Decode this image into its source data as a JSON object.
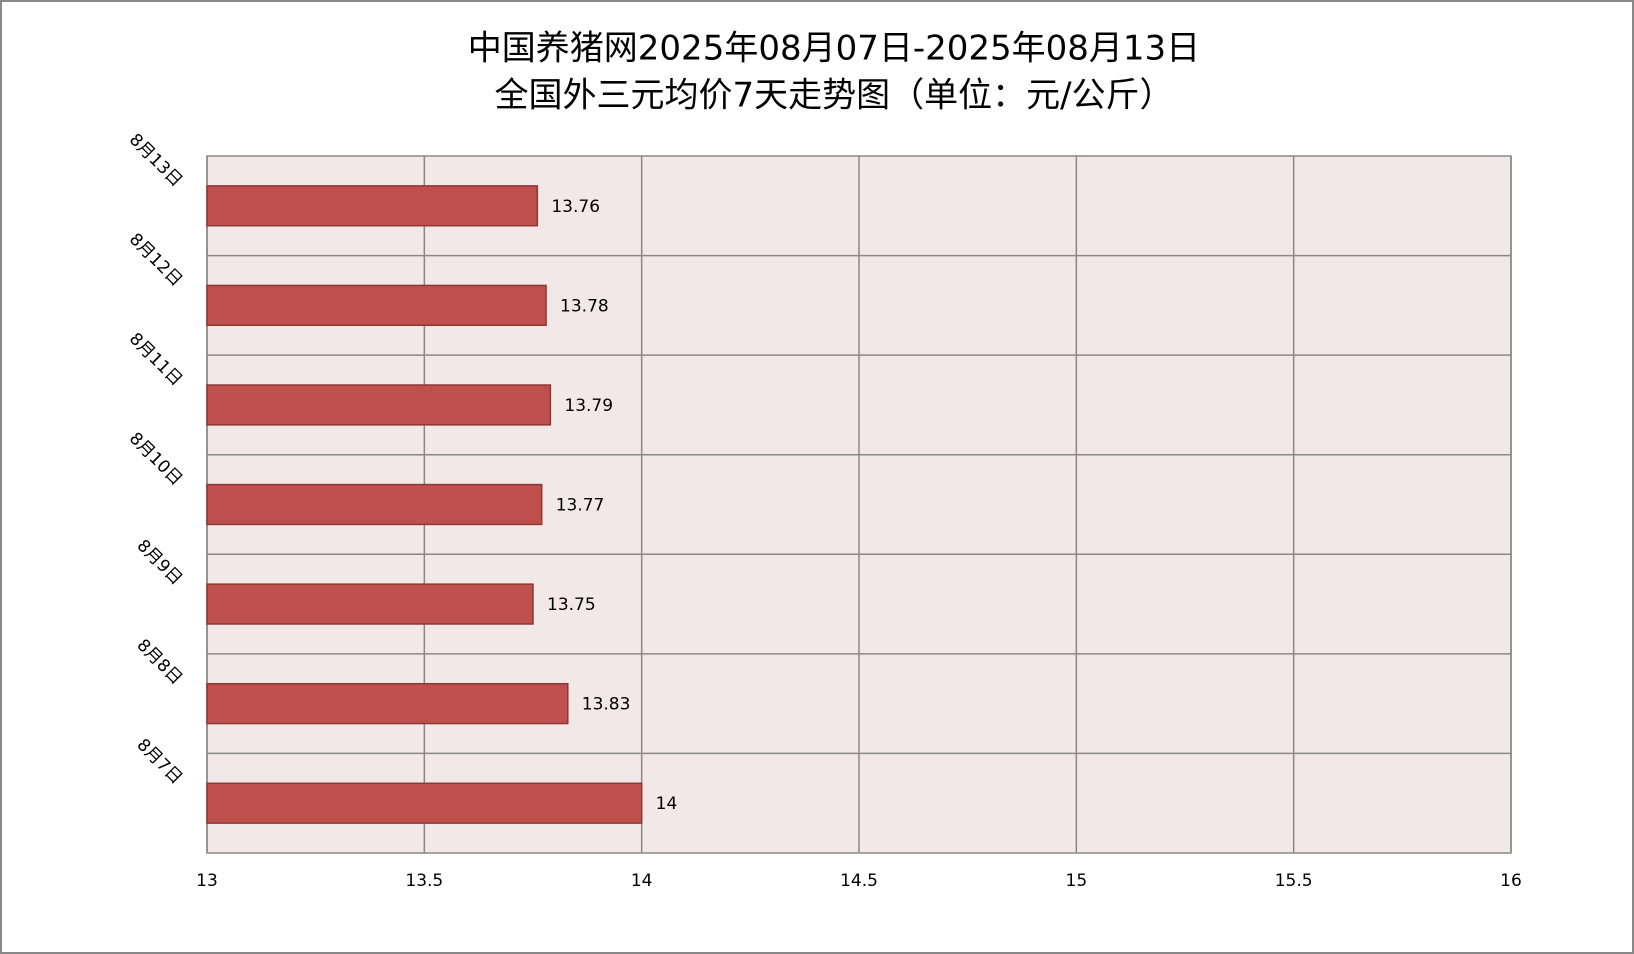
{
  "chart_data": {
    "type": "hbar",
    "title": [
      "中国养猪网2025年08月07日-2025年08月13日",
      "全国外三元均价7天走势图（单位：元/公斤）"
    ],
    "categories": [
      "8月7日",
      "8月8日",
      "8月9日",
      "8月10日",
      "8月11日",
      "8月12日",
      "8月13日"
    ],
    "values": [
      14,
      13.83,
      13.75,
      13.77,
      13.79,
      13.78,
      13.76
    ],
    "color": "#c0504d",
    "xlim": [
      13,
      16
    ],
    "xticks": [
      13,
      13.5,
      14,
      14.5,
      15,
      15.5,
      16
    ],
    "grid": true
  }
}
